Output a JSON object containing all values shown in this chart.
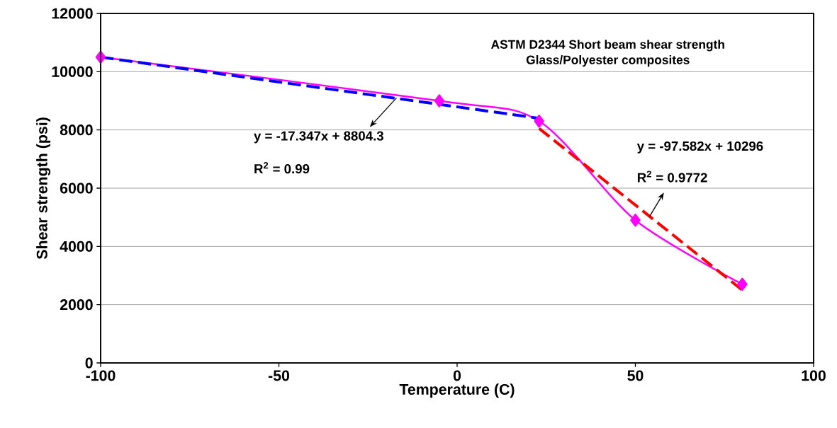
{
  "chart_data": {
    "type": "line",
    "title": "ASTM D2344 Short beam shear strength",
    "subtitle": "Glass/Polyester composites",
    "xlabel": "Temperature (C)",
    "ylabel": "Shear strength (psi)",
    "xlim": [
      -100,
      100
    ],
    "xticks": [
      -100,
      -50,
      0,
      50,
      100
    ],
    "ylim": [
      0,
      12000
    ],
    "yticks": [
      0,
      2000,
      4000,
      6000,
      8000,
      10000,
      12000
    ],
    "grid": "y",
    "series": [
      {
        "type": "line",
        "color": "#ff00ff",
        "x": [
          -100,
          -5,
          23,
          50,
          80
        ],
        "values": [
          10500,
          9000,
          8300,
          4900,
          2700
        ],
        "marker": "diamond",
        "line_style": "solid"
      },
      {
        "type": "line",
        "color": "#0000ff",
        "x": [
          -100,
          23
        ],
        "values": [
          10500,
          8400
        ],
        "marker": "none",
        "line_style": "dashed"
      },
      {
        "type": "line",
        "color": "#ff0000",
        "x": [
          23,
          80
        ],
        "values": [
          8050,
          2500
        ],
        "marker": "none",
        "line_style": "dashed"
      }
    ],
    "annotations": [
      {
        "text": "y = -17.347x + 8804.3",
        "x": -17,
        "y": 9100
      },
      "R$^{2}$ = 0.99",
      "y = -97.582x + 10296",
      {
        "text": "R$^{2}$ = 0.9772",
        "x": 54,
        "y": 5030
      }
    ]
  }
}
